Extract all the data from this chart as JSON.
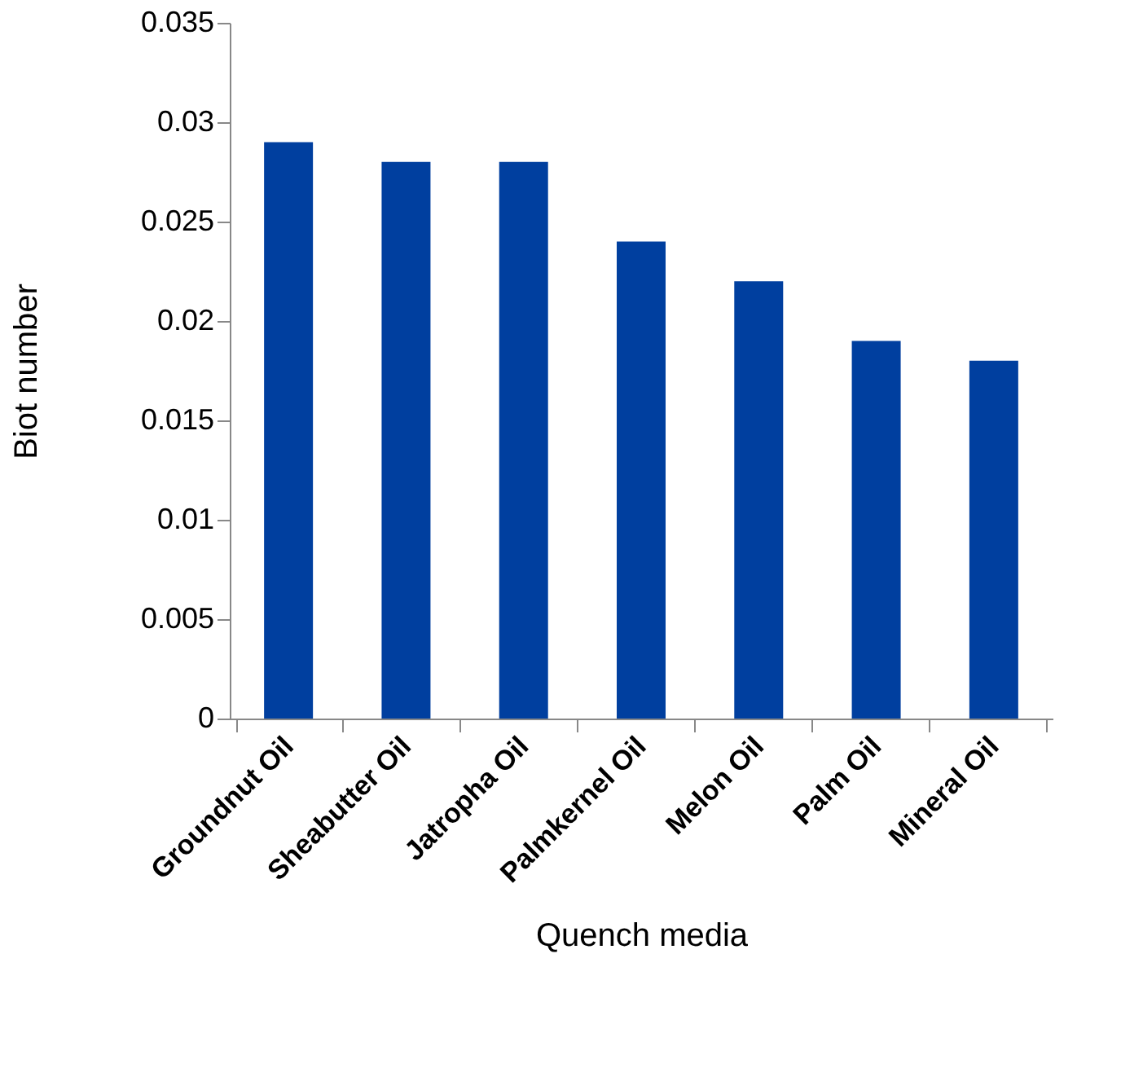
{
  "chart_data": {
    "type": "bar",
    "xlabel": "Quench media",
    "ylabel": "Biot number",
    "categories": [
      "Groundnut Oil",
      "Sheabutter Oil",
      "Jatropha Oil",
      "Palmkernel Oil",
      "Melon Oil",
      "Palm Oil",
      "Mineral Oil"
    ],
    "values": [
      0.029,
      0.028,
      0.028,
      0.024,
      0.022,
      0.019,
      0.018
    ],
    "color": "#003f9f",
    "ylim": [
      0,
      0.035
    ],
    "yticks": [
      0,
      0.005,
      0.01,
      0.015,
      0.02,
      0.025,
      0.03,
      0.035
    ],
    "grid": false
  }
}
